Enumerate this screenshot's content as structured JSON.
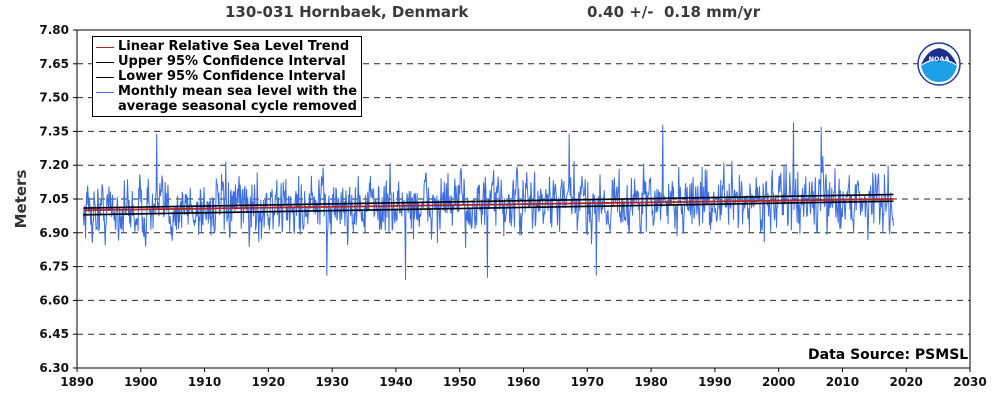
{
  "header": {
    "station": "130-031 Hornbaek, Denmark",
    "trend": "0.40 +/-  0.18 mm/yr"
  },
  "source_label": "Data Source: PSMSL",
  "logo": {
    "text": "NOAA",
    "icon": "noaa-logo"
  },
  "colors": {
    "trend": "#b22222",
    "confidence": "#000000",
    "monthly": "#3d6ee0",
    "grid": "#000000"
  },
  "chart_data": {
    "type": "line",
    "title": "130-031 Hornbaek, Denmark",
    "subtitle": "0.40 +/-  0.18 mm/yr",
    "xlabel": "",
    "ylabel": "Meters",
    "xlim": [
      1890,
      2030
    ],
    "ylim": [
      6.3,
      7.8
    ],
    "x_ticks": [
      1890,
      1900,
      1910,
      1920,
      1930,
      1940,
      1950,
      1960,
      1970,
      1980,
      1990,
      2000,
      2010,
      2020,
      2030
    ],
    "y_ticks": [
      "6.30",
      "6.45",
      "6.60",
      "6.75",
      "6.90",
      "7.05",
      "7.20",
      "7.35",
      "7.50",
      "7.65",
      "7.80"
    ],
    "grid": "horizontal dashed",
    "legend_position": "top-left",
    "legend": [
      {
        "name": "Linear Relative Sea Level Trend",
        "color": "#b22222"
      },
      {
        "name": "Upper 95% Confidence Interval",
        "color": "#000000"
      },
      {
        "name": "Lower 95% Confidence Interval",
        "color": "#000000"
      },
      {
        "name": "Monthly mean sea level with the\naverage seasonal cycle removed",
        "color": "#3d6ee0"
      }
    ],
    "series": [
      {
        "name": "Linear Relative Sea Level Trend",
        "x": [
          1891,
          2018
        ],
        "values": [
          7.0,
          7.05
        ]
      },
      {
        "name": "Upper 95% Confidence Interval",
        "x": [
          1891,
          2018
        ],
        "values": [
          7.01,
          7.07
        ]
      },
      {
        "name": "Lower 95% Confidence Interval",
        "x": [
          1891,
          2018
        ],
        "values": [
          6.98,
          7.04
        ]
      },
      {
        "name": "Monthly mean sea level with the\naverage seasonal cycle removed",
        "x_start": 1891.0,
        "x_end": 2018.0,
        "y_mean_start": 7.0,
        "y_mean_end": 7.05,
        "y_min": 6.69,
        "y_max": 7.39,
        "notable_points": [
          {
            "x": 1902.5,
            "y": 7.34
          },
          {
            "x": 1929.2,
            "y": 6.71
          },
          {
            "x": 1941.5,
            "y": 6.69
          },
          {
            "x": 1954.3,
            "y": 6.7
          },
          {
            "x": 1967.2,
            "y": 7.34
          },
          {
            "x": 1971.4,
            "y": 6.71
          },
          {
            "x": 1981.8,
            "y": 7.38
          },
          {
            "x": 2002.3,
            "y": 7.39
          },
          {
            "x": 2006.7,
            "y": 7.37
          }
        ]
      }
    ]
  }
}
